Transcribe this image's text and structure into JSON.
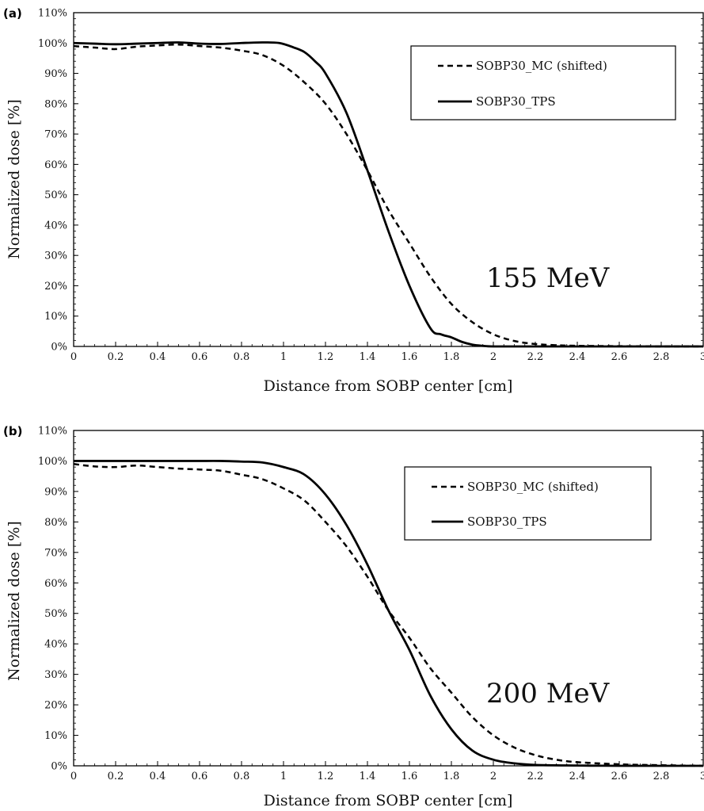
{
  "chart_data": [
    {
      "type": "line",
      "panel_label": "(a)",
      "annotation": "155 MeV",
      "xlabel": "Distance from SOBP center [cm]",
      "ylabel": "Normalized dose [%]",
      "xlim": [
        0,
        3
      ],
      "ylim": [
        0,
        110
      ],
      "x_ticks": [
        "0",
        "0.2",
        "0.4",
        "0.6",
        "0.8",
        "1",
        "1.2",
        "1.4",
        "1.6",
        "1.8",
        "2",
        "2.2",
        "2.4",
        "2.6",
        "2.8",
        "3"
      ],
      "y_ticks": [
        "0%",
        "10%",
        "20%",
        "30%",
        "40%",
        "50%",
        "60%",
        "70%",
        "80%",
        "90%",
        "100%",
        "110%"
      ],
      "legend_position": "top-right",
      "series": [
        {
          "name": "SOBP30_MC (shifted)",
          "style": "dashed",
          "x": [
            0,
            0.1,
            0.2,
            0.3,
            0.4,
            0.5,
            0.6,
            0.7,
            0.8,
            0.9,
            1.0,
            1.1,
            1.2,
            1.3,
            1.4,
            1.5,
            1.6,
            1.7,
            1.8,
            1.9,
            2.0,
            2.1,
            2.2,
            2.3,
            2.4,
            2.6,
            2.8,
            3.0
          ],
          "y": [
            99,
            98.5,
            98,
            98.8,
            99.2,
            99.5,
            99,
            98.5,
            97.5,
            96,
            92.5,
            87,
            80,
            70,
            58,
            45,
            34,
            23,
            14,
            8,
            4,
            1.8,
            0.8,
            0.4,
            0.2,
            0.1,
            0,
            0
          ]
        },
        {
          "name": "SOBP30_TPS",
          "style": "solid",
          "x": [
            0,
            0.1,
            0.2,
            0.3,
            0.4,
            0.5,
            0.6,
            0.7,
            0.8,
            0.9,
            0.98,
            1.05,
            1.1,
            1.15,
            1.2,
            1.3,
            1.4,
            1.5,
            1.6,
            1.7,
            1.75,
            1.8,
            1.85,
            1.9,
            1.95,
            2.0,
            2.2,
            2.4,
            3.0
          ],
          "y": [
            100,
            99.8,
            99.6,
            99.8,
            100,
            100.2,
            99.8,
            99.7,
            100,
            100.2,
            100,
            98.5,
            97,
            94,
            90,
            77,
            58,
            38,
            20,
            6,
            4,
            3,
            1.5,
            0.6,
            0.2,
            0,
            0,
            0,
            0
          ]
        }
      ]
    },
    {
      "type": "line",
      "panel_label": "(b)",
      "annotation": "200 MeV",
      "xlabel": "Distance from SOBP center [cm]",
      "ylabel": "Normalized dose [%]",
      "xlim": [
        0,
        3
      ],
      "ylim": [
        0,
        110
      ],
      "x_ticks": [
        "0",
        "0.2",
        "0.4",
        "0.6",
        "0.8",
        "1",
        "1.2",
        "1.4",
        "1.6",
        "1.8",
        "2",
        "2.2",
        "2.4",
        "2.6",
        "2.8",
        "3"
      ],
      "y_ticks": [
        "0%",
        "10%",
        "20%",
        "30%",
        "40%",
        "50%",
        "60%",
        "70%",
        "80%",
        "90%",
        "100%",
        "110%"
      ],
      "legend_position": "top-right",
      "series": [
        {
          "name": "SOBP30_MC (shifted)",
          "style": "dashed",
          "x": [
            0,
            0.1,
            0.2,
            0.3,
            0.4,
            0.5,
            0.6,
            0.7,
            0.8,
            0.9,
            1.0,
            1.1,
            1.2,
            1.3,
            1.4,
            1.5,
            1.6,
            1.7,
            1.8,
            1.9,
            2.0,
            2.1,
            2.2,
            2.3,
            2.4,
            2.6,
            2.8,
            3.0
          ],
          "y": [
            99,
            98.2,
            98,
            98.5,
            98,
            97.5,
            97.2,
            96.8,
            95.5,
            94,
            91,
            87,
            80,
            72,
            62,
            51,
            42,
            32,
            24,
            16,
            10,
            6,
            3.5,
            2,
            1.2,
            0.5,
            0.2,
            0
          ]
        },
        {
          "name": "SOBP30_TPS",
          "style": "solid",
          "x": [
            0,
            0.1,
            0.2,
            0.3,
            0.4,
            0.5,
            0.6,
            0.7,
            0.8,
            0.9,
            1.0,
            1.1,
            1.2,
            1.3,
            1.4,
            1.5,
            1.6,
            1.7,
            1.8,
            1.9,
            2.0,
            2.1,
            2.2,
            2.4,
            2.6,
            3.0
          ],
          "y": [
            100,
            100,
            100,
            100,
            100,
            100,
            100,
            100,
            99.8,
            99.5,
            98,
            95.5,
            89,
            79,
            66,
            51,
            38,
            23,
            12,
            5,
            2,
            0.8,
            0.3,
            0.1,
            0,
            0
          ]
        }
      ]
    }
  ]
}
